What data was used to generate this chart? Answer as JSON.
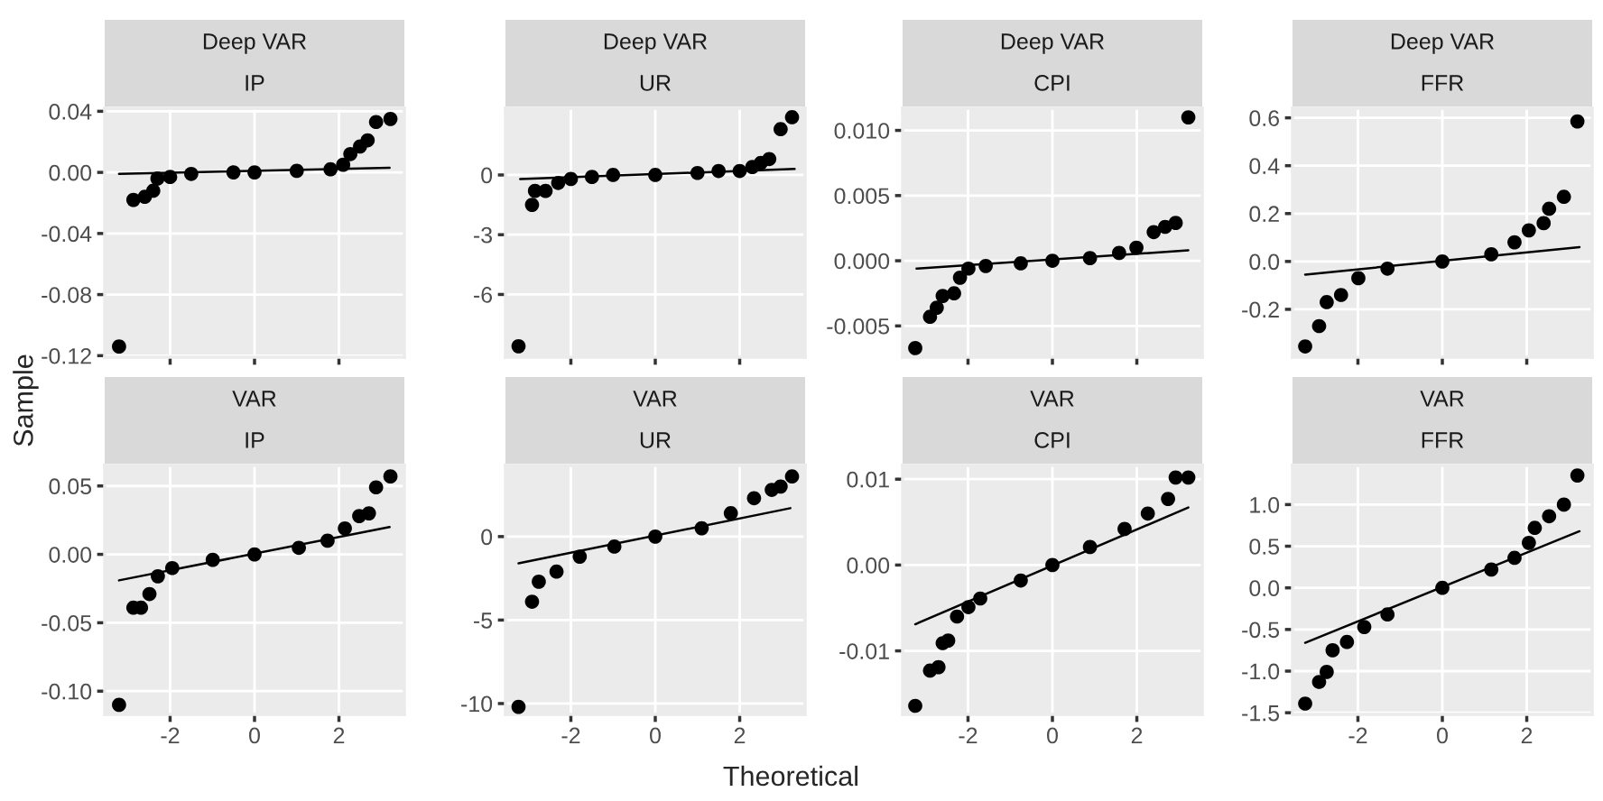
{
  "chart_data": [
    {
      "type": "scatter",
      "title": "Deep VAR",
      "subtitle": "IP",
      "ylabel": "Sample",
      "grid": true,
      "tick_labels": "y",
      "xlim": [
        -3.55,
        3.55
      ],
      "xticks": [
        -2,
        0,
        2
      ],
      "ylim": [
        -0.121,
        0.042
      ],
      "yticks": [
        {
          "value": -0.12,
          "label": "-0.12"
        },
        {
          "value": -0.08,
          "label": "-0.08"
        },
        {
          "value": -0.04,
          "label": "-0.04"
        },
        {
          "value": 0,
          "label": "0.00"
        },
        {
          "value": 0.04,
          "label": "0.04"
        }
      ],
      "series": [
        {
          "marker": "circle",
          "color": "#000000",
          "x": [
            -3.21,
            -2.87,
            -2.6,
            -2.4,
            -2.3,
            -2.0,
            -1.5,
            -0.5,
            0,
            1,
            1.8,
            2.1,
            2.27,
            2.5,
            2.68,
            2.88,
            3.22
          ],
          "values": [
            -0.114,
            -0.018,
            -0.016,
            -0.012,
            -0.004,
            -0.003,
            -0.001,
            0.0,
            0.0,
            0.001,
            0.002,
            0.005,
            0.012,
            0.017,
            0.021,
            0.033,
            0.035
          ]
        },
        {
          "type": "line",
          "color": "#000000",
          "x": [
            -3.21,
            3.2
          ],
          "values": [
            -0.001,
            0.003
          ]
        }
      ]
    },
    {
      "type": "scatter",
      "title": "Deep VAR",
      "subtitle": "UR",
      "grid": true,
      "tick_labels": "y",
      "xlim": [
        -3.55,
        3.55
      ],
      "xticks": [
        -2,
        0,
        2
      ],
      "ylim": [
        -9.15,
        3.35
      ],
      "yticks": [
        -6,
        -3,
        0
      ],
      "series": [
        {
          "marker": "circle",
          "color": "#000000",
          "x": [
            -3.24,
            -2.92,
            -2.85,
            -2.6,
            -2.3,
            -2.0,
            -1.5,
            -1,
            0,
            1,
            1.5,
            2,
            2.3,
            2.5,
            2.7,
            2.97,
            3.24
          ],
          "values": [
            -8.6,
            -1.5,
            -0.8,
            -0.8,
            -0.4,
            -0.2,
            -0.1,
            0.0,
            0.0,
            0.1,
            0.2,
            0.2,
            0.4,
            0.6,
            0.8,
            2.3,
            2.9
          ]
        },
        {
          "type": "line",
          "color": "#000000",
          "x": [
            -3.2,
            3.3
          ],
          "values": [
            -0.2,
            0.3
          ]
        }
      ]
    },
    {
      "type": "scatter",
      "title": "Deep VAR",
      "subtitle": "CPI",
      "grid": true,
      "tick_labels": "y",
      "xlim": [
        -3.55,
        3.55
      ],
      "xticks": [
        -2,
        0,
        2
      ],
      "ylim": [
        -0.0074,
        0.0117
      ],
      "yticks": [
        {
          "value": -0.005,
          "label": "-0.005"
        },
        {
          "value": 0,
          "label": "0.000"
        },
        {
          "value": 0.005,
          "label": "0.005"
        },
        {
          "value": 0.01,
          "label": "0.010"
        }
      ],
      "series": [
        {
          "marker": "circle",
          "color": "#000000",
          "x": [
            -3.25,
            -2.9,
            -2.74,
            -2.6,
            -2.33,
            -2.19,
            -1.99,
            -1.58,
            -0.75,
            0,
            0.89,
            1.58,
            1.99,
            2.4,
            2.67,
            2.92,
            3.22
          ],
          "values": [
            -0.0067,
            -0.0043,
            -0.0036,
            -0.0027,
            -0.0025,
            -0.0013,
            -0.0006,
            -0.0004,
            -0.0002,
            0.0,
            0.0002,
            0.0006,
            0.001,
            0.0022,
            0.0026,
            0.0029,
            0.011
          ]
        },
        {
          "type": "line",
          "color": "#000000",
          "x": [
            -3.22,
            3.22
          ],
          "values": [
            -0.0006,
            0.0008
          ]
        }
      ]
    },
    {
      "type": "scatter",
      "title": "Deep VAR",
      "subtitle": "FFR",
      "grid": true,
      "tick_labels": "y",
      "xlim": [
        -3.55,
        3.55
      ],
      "xticks": [
        -2,
        0,
        2
      ],
      "ylim": [
        -0.4,
        0.64
      ],
      "yticks": [
        {
          "value": -0.2,
          "label": "-0.2"
        },
        {
          "value": 0,
          "label": "0.0"
        },
        {
          "value": 0.2,
          "label": "0.2"
        },
        {
          "value": 0.4,
          "label": "0.4"
        },
        {
          "value": 0.6,
          "label": "0.6"
        }
      ],
      "series": [
        {
          "marker": "circle",
          "color": "#000000",
          "x": [
            -3.25,
            -2.92,
            -2.74,
            -2.4,
            -1.99,
            -1.3,
            0,
            1.16,
            1.71,
            2.05,
            2.4,
            2.53,
            2.88,
            3.2
          ],
          "values": [
            -0.355,
            -0.27,
            -0.17,
            -0.14,
            -0.07,
            -0.03,
            0,
            0.03,
            0.08,
            0.13,
            0.16,
            0.22,
            0.27,
            0.585
          ]
        },
        {
          "type": "line",
          "color": "#000000",
          "x": [
            -3.25,
            3.25
          ],
          "values": [
            -0.055,
            0.06
          ]
        }
      ]
    },
    {
      "type": "scatter",
      "title": "VAR",
      "subtitle": "IP",
      "grid": true,
      "xlim": [
        -3.55,
        3.55
      ],
      "xticks": [
        -2,
        0,
        2
      ],
      "ylim": [
        -0.117,
        0.065
      ],
      "yticks": [
        {
          "value": -0.1,
          "label": "-0.10"
        },
        {
          "value": -0.05,
          "label": "-0.05"
        },
        {
          "value": 0,
          "label": "0.00"
        },
        {
          "value": 0.05,
          "label": "0.05"
        }
      ],
      "series": [
        {
          "marker": "circle",
          "color": "#000000",
          "x": [
            -3.21,
            -2.87,
            -2.69,
            -2.49,
            -2.29,
            -1.95,
            -0.99,
            0,
            1.05,
            1.73,
            2.14,
            2.48,
            2.71,
            2.88,
            3.22
          ],
          "values": [
            -0.11,
            -0.039,
            -0.039,
            -0.029,
            -0.016,
            -0.01,
            -0.004,
            0,
            0.0048,
            0.01,
            0.019,
            0.028,
            0.03,
            0.049,
            0.057
          ]
        },
        {
          "type": "line",
          "color": "#000000",
          "x": [
            -3.21,
            3.2
          ],
          "values": [
            -0.019,
            0.02
          ]
        }
      ]
    },
    {
      "type": "scatter",
      "title": "VAR",
      "subtitle": "UR",
      "xlabel": "Theoretical",
      "grid": true,
      "xlim": [
        -3.55,
        3.55
      ],
      "xticks": [
        -2,
        0,
        2
      ],
      "ylim": [
        -10.65,
        4.26
      ],
      "yticks": [
        -10,
        -5,
        0
      ],
      "series": [
        {
          "marker": "circle",
          "color": "#000000",
          "x": [
            -3.24,
            -2.92,
            -2.76,
            -2.34,
            -1.79,
            -0.97,
            0,
            1.1,
            1.79,
            2.34,
            2.76,
            2.97,
            3.24
          ],
          "values": [
            -10.2,
            -3.9,
            -2.7,
            -2.1,
            -1.2,
            -0.6,
            0,
            0.5,
            1.4,
            2.3,
            2.8,
            3.0,
            3.6
          ]
        },
        {
          "type": "line",
          "color": "#000000",
          "x": [
            -3.24,
            3.2
          ],
          "values": [
            -1.6,
            1.7
          ]
        }
      ]
    },
    {
      "type": "scatter",
      "title": "VAR",
      "subtitle": "CPI",
      "grid": true,
      "xlim": [
        -3.55,
        3.55
      ],
      "xticks": [
        -2,
        0,
        2
      ],
      "ylim": [
        -0.0174,
        0.0116
      ],
      "yticks": [
        {
          "value": -0.01,
          "label": "-0.01"
        },
        {
          "value": 0,
          "label": "0.00"
        },
        {
          "value": 0.01,
          "label": "0.01"
        }
      ],
      "series": [
        {
          "marker": "circle",
          "color": "#000000",
          "x": [
            -3.25,
            -2.9,
            -2.7,
            -2.6,
            -2.47,
            -2.26,
            -1.99,
            -1.71,
            -0.75,
            0,
            0.89,
            1.71,
            2.26,
            2.74,
            2.92,
            3.22
          ],
          "values": [
            -0.0164,
            -0.0123,
            -0.0119,
            -0.0091,
            -0.0088,
            -0.006,
            -0.0049,
            -0.0039,
            -0.0018,
            0,
            0.0021,
            0.0042,
            0.006,
            0.0077,
            0.0102,
            0.0102
          ]
        },
        {
          "type": "line",
          "color": "#000000",
          "x": [
            -3.25,
            3.22
          ],
          "values": [
            -0.0069,
            0.0067
          ]
        }
      ]
    },
    {
      "type": "scatter",
      "title": "VAR",
      "subtitle": "FFR",
      "grid": true,
      "xlim": [
        -3.55,
        3.55
      ],
      "xticks": [
        -2,
        0,
        2
      ],
      "ylim": [
        -1.52,
        1.47
      ],
      "yticks": [
        {
          "value": -1.5,
          "label": "-1.5"
        },
        {
          "value": -1.0,
          "label": "-1.0"
        },
        {
          "value": -0.5,
          "label": "-0.5"
        },
        {
          "value": 0,
          "label": "0.0"
        },
        {
          "value": 0.5,
          "label": "0.5"
        },
        {
          "value": 1.0,
          "label": "1.0"
        }
      ],
      "series": [
        {
          "marker": "circle",
          "color": "#000000",
          "x": [
            -3.25,
            -2.92,
            -2.74,
            -2.6,
            -2.26,
            -1.85,
            -1.3,
            0,
            1.16,
            1.71,
            2.05,
            2.19,
            2.53,
            2.88,
            3.2
          ],
          "values": [
            -1.39,
            -1.13,
            -1.01,
            -0.75,
            -0.65,
            -0.47,
            -0.32,
            0,
            0.22,
            0.36,
            0.54,
            0.72,
            0.86,
            1.0,
            1.35
          ]
        },
        {
          "type": "line",
          "color": "#000000",
          "x": [
            -3.25,
            3.25
          ],
          "values": [
            -0.66,
            0.68
          ]
        }
      ]
    }
  ]
}
